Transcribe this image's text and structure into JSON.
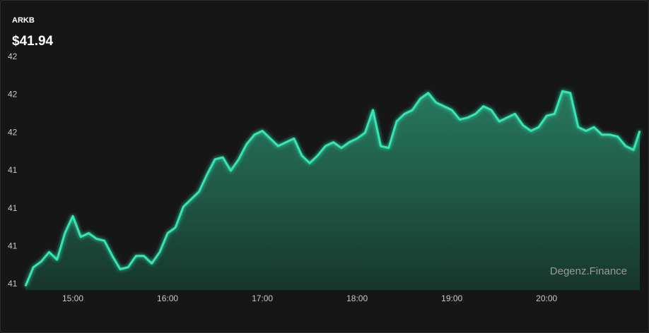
{
  "chart_data": {
    "type": "area",
    "title": "ARKB",
    "subtitle": "$41.94",
    "watermark": "Degenz.Finance",
    "color": "#35e6b4",
    "x": [
      "14:30",
      "14:35",
      "14:40",
      "14:45",
      "14:50",
      "14:55",
      "15:00",
      "15:05",
      "15:10",
      "15:15",
      "15:20",
      "15:25",
      "15:30",
      "15:35",
      "15:40",
      "15:45",
      "15:50",
      "15:55",
      "16:00",
      "16:05",
      "16:10",
      "16:15",
      "16:20",
      "16:25",
      "16:30",
      "16:35",
      "16:40",
      "16:45",
      "16:50",
      "16:55",
      "17:00",
      "17:05",
      "17:10",
      "17:15",
      "17:20",
      "17:25",
      "17:30",
      "17:35",
      "17:40",
      "17:45",
      "17:50",
      "17:55",
      "18:00",
      "18:05",
      "18:10",
      "18:15",
      "18:20",
      "18:25",
      "18:30",
      "18:35",
      "18:40",
      "18:45",
      "18:50",
      "18:55",
      "19:00",
      "19:05",
      "19:10",
      "19:15",
      "19:20",
      "19:25",
      "19:30",
      "19:35",
      "19:40",
      "19:45",
      "19:50",
      "19:55",
      "20:00",
      "20:05",
      "20:10",
      "20:15",
      "20:20",
      "20:25",
      "20:30",
      "20:35",
      "20:40",
      "20:45",
      "20:50",
      "20:55",
      "20:59"
    ],
    "values": [
      40.79,
      40.89,
      40.92,
      40.97,
      40.93,
      41.07,
      41.16,
      41.05,
      41.07,
      41.04,
      41.03,
      40.95,
      40.88,
      40.89,
      40.95,
      40.95,
      40.91,
      40.97,
      41.07,
      41.1,
      41.21,
      41.25,
      41.29,
      41.38,
      41.46,
      41.47,
      41.4,
      41.46,
      41.54,
      41.59,
      41.61,
      41.57,
      41.53,
      41.55,
      41.57,
      41.48,
      41.44,
      41.48,
      41.53,
      41.55,
      41.52,
      41.55,
      41.57,
      41.6,
      41.72,
      41.53,
      41.52,
      41.66,
      41.7,
      41.72,
      41.78,
      41.81,
      41.76,
      41.74,
      41.72,
      41.67,
      41.68,
      41.7,
      41.74,
      41.72,
      41.66,
      41.68,
      41.7,
      41.64,
      41.61,
      41.63,
      41.69,
      41.7,
      41.82,
      41.81,
      41.63,
      41.61,
      41.63,
      41.59,
      41.59,
      41.58,
      41.53,
      41.51,
      41.61
    ],
    "xlim": [
      "14:30",
      "20:59"
    ],
    "xticks": [
      "15:00",
      "16:00",
      "17:00",
      "18:00",
      "19:00",
      "20:00"
    ],
    "ylim": [
      40.77,
      42.1
    ],
    "yticks": [
      {
        "value": 40.8,
        "label": "41"
      },
      {
        "value": 41.0,
        "label": "41"
      },
      {
        "value": 41.2,
        "label": "41"
      },
      {
        "value": 41.4,
        "label": "41"
      },
      {
        "value": 41.6,
        "label": "42"
      },
      {
        "value": 41.8,
        "label": "42"
      },
      {
        "value": 42.0,
        "label": "42"
      }
    ]
  }
}
